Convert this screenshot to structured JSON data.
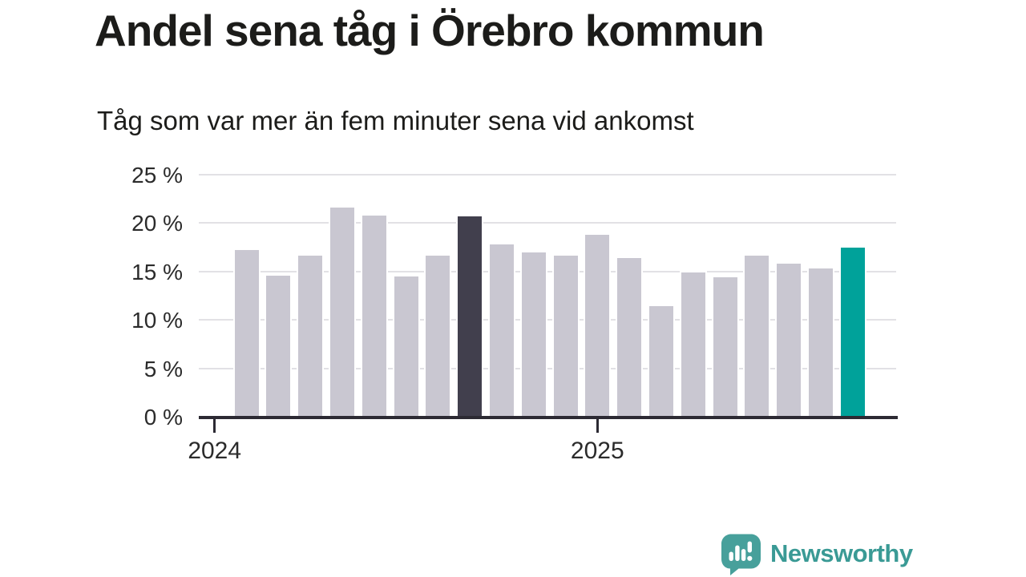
{
  "chart": {
    "title": "Andel sena tåg i Örebro kommun",
    "subtitle": "Tåg som var mer än fem minuter sena vid ankomst"
  },
  "chart_data": {
    "type": "bar",
    "title": "Andel sena tåg i Örebro kommun",
    "subtitle": "Tåg som var mer än fem minuter sena vid ankomst",
    "unit": "%",
    "categories": [
      "2024-02",
      "2024-03",
      "2024-04",
      "2024-05",
      "2024-06",
      "2024-07",
      "2024-08",
      "2024-09",
      "2024-10",
      "2024-11",
      "2024-12",
      "2025-01",
      "2025-02",
      "2025-03",
      "2025-04",
      "2025-05",
      "2025-06",
      "2025-07",
      "2025-08",
      "2025-09"
    ],
    "values": [
      17.2,
      14.6,
      16.6,
      21.6,
      20.8,
      14.5,
      16.6,
      20.7,
      17.8,
      17.0,
      16.6,
      18.8,
      16.4,
      11.4,
      14.9,
      14.4,
      16.6,
      15.8,
      15.3,
      17.5
    ],
    "highlights": {
      "previous_year_index": 7,
      "latest_index": 19
    },
    "ylim": [
      0,
      25
    ],
    "yticks": [
      {
        "value": 0,
        "label": "0 %"
      },
      {
        "value": 5,
        "label": "5 %"
      },
      {
        "value": 10,
        "label": "10 %"
      },
      {
        "value": 15,
        "label": "15 %"
      },
      {
        "value": 20,
        "label": "20 %"
      },
      {
        "value": 25,
        "label": "25 %"
      }
    ],
    "xticks": [
      {
        "label": "2024",
        "slot": -1
      },
      {
        "label": "2025",
        "slot": 11
      }
    ],
    "grid": true,
    "legend_position": "none",
    "colors": {
      "bar_default": "#c9c7d1",
      "bar_highlight_dark": "#413f4d",
      "bar_highlight_teal": "#00a29a",
      "gridline": "#e2e1e5",
      "axis": "#2c2a33",
      "tick_text": "#2b2b2b",
      "title_text": "#1c1c1a"
    }
  },
  "footer": {
    "brand": "Newsworthy",
    "brand_color": "#3a9a95"
  }
}
